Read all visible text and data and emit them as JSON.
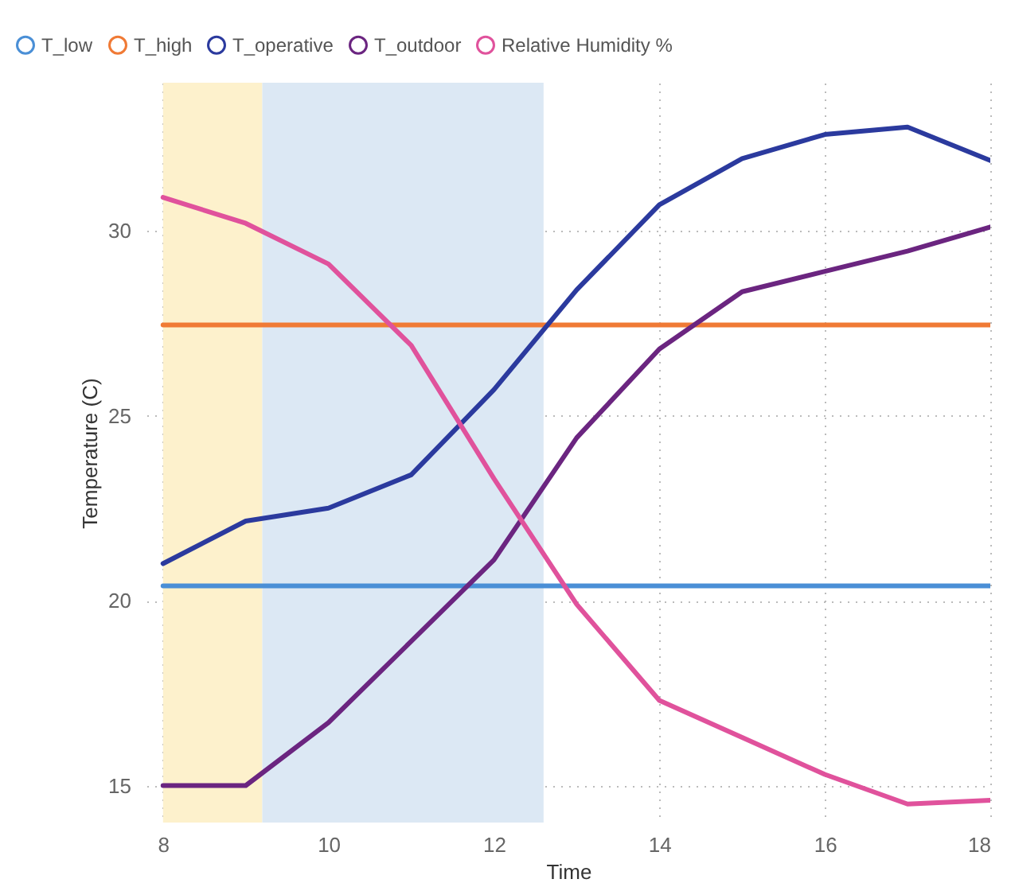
{
  "chart_data": {
    "type": "line",
    "xlabel": "Time",
    "ylabel": "Temperature (C)",
    "x": [
      8,
      9,
      10,
      11,
      12,
      13,
      14,
      15,
      16,
      17,
      18
    ],
    "series": [
      {
        "name": "T_low",
        "color": "#4a8fd6",
        "values": [
          20.4,
          20.4,
          20.4,
          20.4,
          20.4,
          20.4,
          20.4,
          20.4,
          20.4,
          20.4,
          20.4
        ]
      },
      {
        "name": "T_high",
        "color": "#f07a35",
        "values": [
          27.45,
          27.45,
          27.45,
          27.45,
          27.45,
          27.45,
          27.45,
          27.45,
          27.45,
          27.45,
          27.45
        ]
      },
      {
        "name": "T_operative",
        "color": "#2b3a9e",
        "values": [
          21.0,
          22.15,
          22.5,
          23.4,
          25.7,
          28.4,
          30.7,
          31.95,
          32.6,
          32.8,
          31.9
        ]
      },
      {
        "name": "T_outdoor",
        "color": "#6b2580",
        "values": [
          15.0,
          15.0,
          16.7,
          18.9,
          21.1,
          24.4,
          26.8,
          28.35,
          28.9,
          29.45,
          30.1
        ]
      },
      {
        "name": "Relative Humidity %",
        "color": "#e0529c",
        "values": [
          30.9,
          30.2,
          29.1,
          26.9,
          23.3,
          19.9,
          17.3,
          16.3,
          15.3,
          14.5,
          14.6
        ]
      }
    ],
    "bands": [
      {
        "axis": "x",
        "from": 8,
        "to": 9.2,
        "color": "#fdf1cc"
      },
      {
        "axis": "x",
        "from": 9.2,
        "to": 12.6,
        "color": "#dce8f4"
      }
    ],
    "xlim": [
      7.8,
      18
    ],
    "xticks": [
      8,
      10,
      12,
      14,
      16,
      18
    ],
    "ylim": [
      14,
      34
    ],
    "yticks": [
      15,
      20,
      25,
      30
    ],
    "grid": true,
    "legend": "top left",
    "marker": "none",
    "line_style": "solid"
  }
}
